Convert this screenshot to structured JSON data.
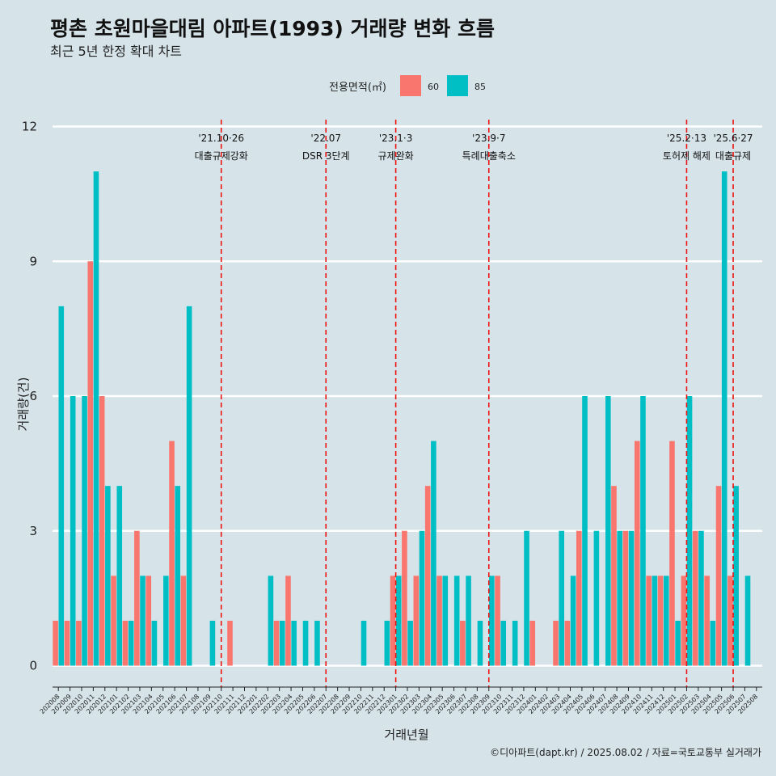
{
  "chart_data": {
    "type": "bar",
    "title": "평촌 초원마을대림 아파트(1993) 거래량 변화 흐름",
    "subtitle": "최근 5년 한정 확대 차트",
    "xlabel": "거래년월",
    "ylabel": "거래량(건)",
    "caption": "©디아파트(dapt.kr) / 2025.08.02 / 자료=국토교통부 실거래가",
    "legend": {
      "title": "전용면적(㎡)",
      "position": "top"
    },
    "ylim": [
      0,
      12
    ],
    "yticks": [
      0,
      3,
      6,
      9,
      12
    ],
    "grid": true,
    "categories": [
      "202008",
      "202009",
      "202010",
      "202011",
      "202012",
      "202101",
      "202102",
      "202103",
      "202104",
      "202105",
      "202106",
      "202107",
      "202108",
      "202109",
      "202110",
      "202111",
      "202112",
      "202201",
      "202202",
      "202203",
      "202204",
      "202205",
      "202206",
      "202207",
      "202208",
      "202209",
      "202210",
      "202211",
      "202212",
      "202301",
      "202302",
      "202303",
      "202304",
      "202305",
      "202306",
      "202307",
      "202308",
      "202309",
      "202310",
      "202311",
      "202312",
      "202401",
      "202402",
      "202403",
      "202404",
      "202405",
      "202406",
      "202407",
      "202408",
      "202409",
      "202410",
      "202411",
      "202412",
      "202501",
      "202502",
      "202503",
      "202504",
      "202505",
      "202506",
      "202507",
      "202508"
    ],
    "series": [
      {
        "name": "60",
        "color": "#f8766d",
        "values": [
          1,
          1,
          1,
          9,
          6,
          2,
          1,
          3,
          2,
          0,
          5,
          2,
          0,
          0,
          0,
          1,
          0,
          0,
          0,
          1,
          2,
          0,
          0,
          0,
          0,
          0,
          0,
          0,
          0,
          2,
          3,
          2,
          4,
          2,
          0,
          1,
          0,
          0,
          2,
          0,
          0,
          1,
          0,
          1,
          1,
          3,
          0,
          0,
          4,
          3,
          5,
          2,
          2,
          5,
          2,
          3,
          2,
          4,
          2,
          0,
          0
        ]
      },
      {
        "name": "85",
        "color": "#00bfc4",
        "values": [
          8,
          6,
          6,
          11,
          4,
          4,
          1,
          2,
          1,
          2,
          4,
          8,
          0,
          1,
          0,
          0,
          0,
          0,
          2,
          1,
          1,
          1,
          1,
          0,
          0,
          0,
          1,
          0,
          1,
          2,
          1,
          3,
          5,
          2,
          2,
          2,
          1,
          2,
          1,
          1,
          3,
          0,
          0,
          3,
          2,
          6,
          3,
          6,
          3,
          3,
          6,
          2,
          2,
          1,
          6,
          3,
          1,
          11,
          4,
          2,
          0
        ]
      }
    ],
    "annotations": [
      {
        "date": "'21.10·26",
        "label": "대출규제강화",
        "at": 14
      },
      {
        "date": "'22.07",
        "label": "DSR 3단계",
        "at": 23
      },
      {
        "date": "'23.1·3",
        "label": "규제완화",
        "at": 29
      },
      {
        "date": "'23.9·7",
        "label": "특례대출축소",
        "at": 37
      },
      {
        "date": "'25.2·13",
        "label": "토허제 해제",
        "at": 54
      },
      {
        "date": "'25.6·27",
        "label": "대출규제",
        "at": 58
      }
    ]
  }
}
